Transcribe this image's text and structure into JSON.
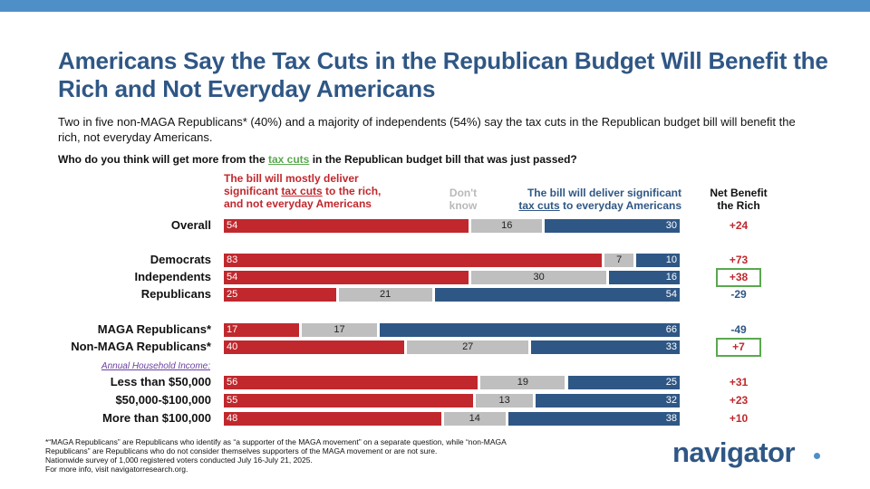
{
  "title": "Americans Say the Tax Cuts in the Republican Budget Will Benefit the Rich and Not Everyday Americans",
  "subtitle": "Two in five non-MAGA Republicans* (40%) and a majority of independents (54%) say the tax cuts in the Republican budget bill will benefit the rich, not everyday Americans.",
  "question": {
    "before": "Who do you think will get more from the ",
    "highlight": "tax cuts",
    "after": " in the Republican budget bill that was just passed?"
  },
  "headers": {
    "left_1": "The bill will mostly deliver",
    "left_2a": "significant ",
    "left_2b": "tax cuts",
    "left_2c": " to the rich,",
    "left_3": "and not everyday Americans",
    "dk_1": "Don't",
    "dk_2": "know",
    "right_1": "The bill will deliver significant",
    "right_2a": "tax cuts",
    "right_2b": " to everyday Americans",
    "net_1": "Net Benefit",
    "net_2": "the Rich"
  },
  "income_label": "Annual Household Income:",
  "colors": {
    "rich": "#c0282d",
    "dont_know": "#bfbfbf",
    "everyday": "#2f5785",
    "net_positive": "#c0282d",
    "net_negative": "#2f5785",
    "highlight_box": "#5aa84f"
  },
  "chart_data": {
    "type": "bar",
    "orientation": "horizontal-stacked",
    "title": "Who do you think will get more from the tax cuts in the Republican budget bill that was just passed?",
    "series": [
      {
        "name": "The bill will mostly deliver significant tax cuts to the rich, and not everyday Americans",
        "key": "rich"
      },
      {
        "name": "Don't know",
        "key": "dk"
      },
      {
        "name": "The bill will deliver significant tax cuts to everyday Americans",
        "key": "everyday"
      }
    ],
    "rows": [
      {
        "label": "Overall",
        "rich": 54,
        "dk": 16,
        "everyday": 30,
        "net": "+24",
        "boxed": false
      },
      {
        "label": "Democrats",
        "rich": 83,
        "dk": 7,
        "everyday": 10,
        "net": "+73",
        "boxed": false
      },
      {
        "label": "Independents",
        "rich": 54,
        "dk": 30,
        "everyday": 16,
        "net": "+38",
        "boxed": true
      },
      {
        "label": "Republicans",
        "rich": 25,
        "dk": 21,
        "everyday": 54,
        "net": "-29",
        "boxed": false
      },
      {
        "label": "MAGA Republicans*",
        "rich": 17,
        "dk": 17,
        "everyday": 66,
        "net": "-49",
        "boxed": false
      },
      {
        "label": "Non-MAGA Republicans*",
        "rich": 40,
        "dk": 27,
        "everyday": 33,
        "net": "+7",
        "boxed": true
      },
      {
        "label": "Less than $50,000",
        "rich": 56,
        "dk": 19,
        "everyday": 25,
        "net": "+31",
        "boxed": false
      },
      {
        "label": "$50,000-$100,000",
        "rich": 55,
        "dk": 13,
        "everyday": 32,
        "net": "+23",
        "boxed": false
      },
      {
        "label": "More than $100,000",
        "rich": 48,
        "dk": 14,
        "everyday": 38,
        "net": "+10",
        "boxed": false
      }
    ]
  },
  "footnote": [
    "*“MAGA Republicans” are Republicans who identify as “a supporter of the MAGA movement” on a separate question, while “non-MAGA",
    "Republicans” are Republicans who do not consider themselves supporters of the MAGA movement or are not sure.",
    "Nationwide survey of 1,000 registered voters conducted July 16-July 21, 2025.",
    "For more info, visit navigatorresearch.org."
  ],
  "logo": "navigator"
}
